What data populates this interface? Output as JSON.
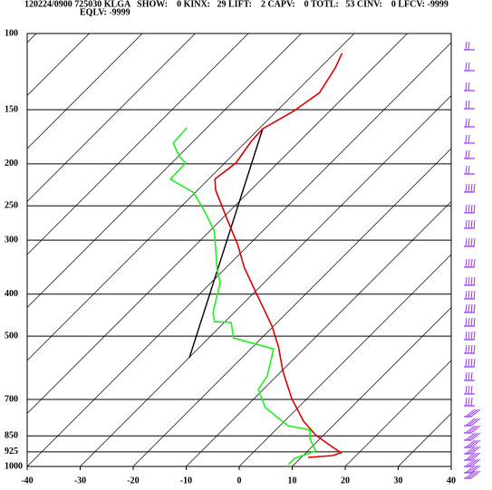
{
  "chart_data": {
    "type": "skewt",
    "title": "120224/0900 725030 KLGA   SHOW:    0 KINX:   29 LIFT:    2 CAPV:    0 TOTL:   53 CINV:    0 LFCV: -9999",
    "subtitle": "EQLV: -9999",
    "xlim": [
      -40,
      40
    ],
    "xticks": [
      -40,
      -30,
      -20,
      -10,
      0,
      10,
      20,
      30,
      40
    ],
    "ylim": [
      1000,
      100
    ],
    "yticks": [
      100,
      150,
      200,
      250,
      300,
      400,
      500,
      700,
      850,
      925,
      1000
    ],
    "yscale": "log",
    "grid": true,
    "series": [
      {
        "color": "#e00000",
        "pressure": [
          111,
          120,
          137,
          151,
          166,
          177,
          199,
          217,
          230,
          266,
          307,
          347,
          397,
          474,
          529,
          603,
          697,
          786,
          845,
          887,
          930,
          944,
          953
        ],
        "values": [
          -58.6,
          -57.1,
          -55.4,
          -56.8,
          -59.3,
          -59.1,
          -57.9,
          -58.8,
          -56.6,
          -49.4,
          -42.2,
          -36.6,
          -29.6,
          -20.3,
          -15.2,
          -9.7,
          -2.9,
          3.6,
          8.4,
          12.5,
          16.6,
          15.6,
          11.3
        ]
      },
      {
        "color": "#22ee22",
        "pressure": [
          165,
          179,
          192,
          199,
          217,
          233,
          256,
          286,
          352,
          376,
          441,
          463,
          465,
          505,
          535,
          618,
          664,
          731,
          805,
          824,
          865,
          921,
          939,
          957,
          990
        ],
        "values": [
          -73.8,
          -73.5,
          -69.9,
          -67.4,
          -67.2,
          -60.3,
          -55.0,
          -49.1,
          -41.2,
          -38.3,
          -34.0,
          -32.0,
          -28.7,
          -25.3,
          -15.7,
          -11.8,
          -10.9,
          -6.2,
          1.5,
          6.5,
          8.2,
          11.5,
          10.3,
          8.9,
          8.9
        ]
      }
    ]
  }
}
